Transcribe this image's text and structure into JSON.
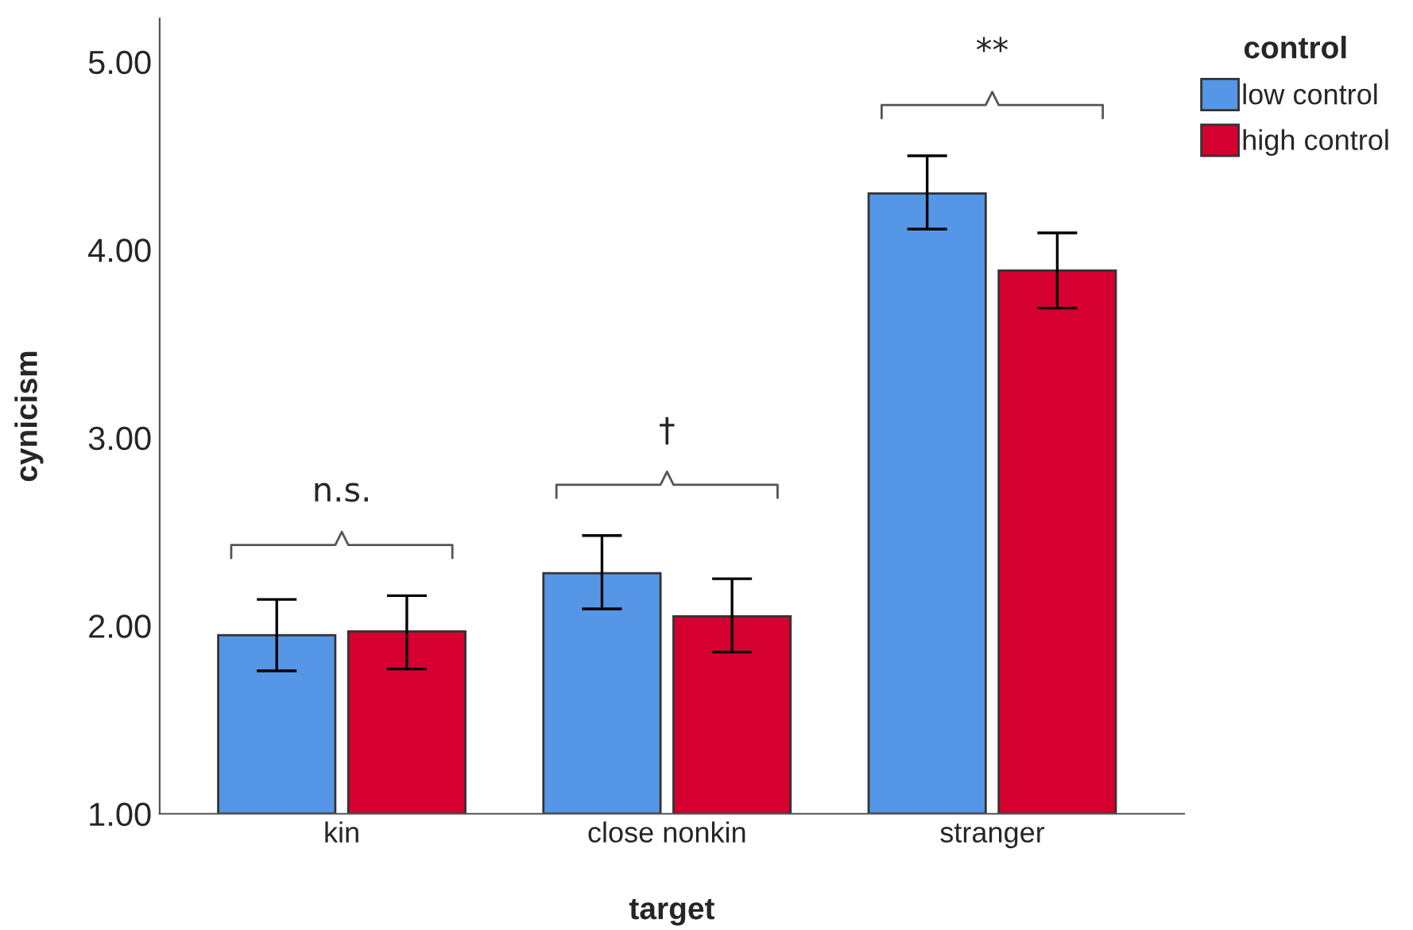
{
  "chart_data": {
    "type": "bar",
    "xlabel": "target",
    "ylabel": "cynicism",
    "legend_title": "control",
    "categories": [
      "kin",
      "close nonkin",
      "stranger"
    ],
    "series": [
      {
        "name": "low control",
        "color": "#5596e6",
        "values": [
          1.95,
          2.28,
          4.3
        ],
        "errors": [
          [
            1.76,
            2.14
          ],
          [
            2.09,
            2.48
          ],
          [
            4.11,
            4.5
          ]
        ]
      },
      {
        "name": "high control",
        "color": "#d5002f",
        "values": [
          1.97,
          2.05,
          3.89
        ],
        "errors": [
          [
            1.77,
            2.16
          ],
          [
            1.86,
            2.25
          ],
          [
            3.69,
            4.09
          ]
        ]
      }
    ],
    "ylim": [
      1,
      5.23
    ],
    "yticks": [
      {
        "value": 1,
        "label": "1.00"
      },
      {
        "value": 2,
        "label": "2.00"
      },
      {
        "value": 3,
        "label": "3.00"
      },
      {
        "value": 4,
        "label": "4.00"
      },
      {
        "value": 5,
        "label": "5.00"
      }
    ],
    "annotations": [
      "n.s.",
      "†",
      "**"
    ],
    "grid": false,
    "legend": "top right"
  }
}
